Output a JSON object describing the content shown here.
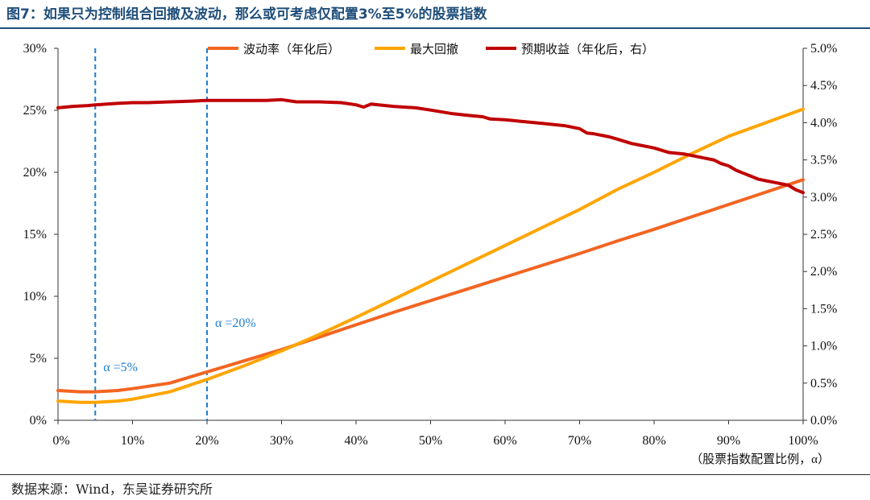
{
  "figure": {
    "title": "图7：如果只为控制组合回撤及波动，那么或可考虑仅配置3%至5%的股票指数",
    "source": "数据来源：Wind，东吴证券研究所"
  },
  "colors": {
    "volatility": "#f26522",
    "max_drawdown": "#ffa500",
    "expected_return": "#c00000",
    "markers": "#1f7fd1",
    "title": "#1f4e79"
  },
  "chart_data": {
    "type": "line",
    "title": "",
    "xlabel": "（股票指数配置比例，α）",
    "ylabel_left": "",
    "ylabel_right": "",
    "x_range": [
      0,
      100
    ],
    "x_ticks": [
      0,
      10,
      20,
      30,
      40,
      50,
      60,
      70,
      80,
      90,
      100
    ],
    "x_tick_labels": [
      "0%",
      "10%",
      "20%",
      "30%",
      "40%",
      "50%",
      "60%",
      "70%",
      "80%",
      "90%",
      "100%"
    ],
    "y_left_range": [
      0,
      30
    ],
    "y_left_ticks": [
      0,
      5,
      10,
      15,
      20,
      25,
      30
    ],
    "y_left_tick_labels": [
      "0%",
      "5%",
      "10%",
      "15%",
      "20%",
      "25%",
      "30%"
    ],
    "y_right_range": [
      0,
      5
    ],
    "y_right_ticks": [
      0,
      0.5,
      1,
      1.5,
      2,
      2.5,
      3,
      3.5,
      4,
      4.5,
      5
    ],
    "y_right_tick_labels": [
      "0.0%",
      "0.5%",
      "1.0%",
      "1.5%",
      "2.0%",
      "2.5%",
      "3.0%",
      "3.5%",
      "4.0%",
      "4.5%",
      "5.0%"
    ],
    "grid": false,
    "legend_position": "top",
    "series": [
      {
        "name": "波动率（年化后）",
        "axis": "left",
        "x": [
          0,
          3,
          5,
          8,
          10,
          15,
          20,
          25,
          30,
          35,
          40,
          45,
          50,
          55,
          60,
          65,
          70,
          75,
          80,
          85,
          90,
          95,
          100
        ],
        "values": [
          2.4,
          2.3,
          2.3,
          2.4,
          2.55,
          3.0,
          3.9,
          4.8,
          5.7,
          6.7,
          7.7,
          8.7,
          9.65,
          10.6,
          11.55,
          12.5,
          13.45,
          14.45,
          15.4,
          16.4,
          17.4,
          18.4,
          19.4
        ]
      },
      {
        "name": "最大回撤",
        "axis": "left",
        "x": [
          0,
          3,
          5,
          8,
          10,
          15,
          20,
          25,
          30,
          35,
          40,
          45,
          50,
          55,
          60,
          65,
          70,
          75,
          80,
          85,
          90,
          95,
          100
        ],
        "values": [
          1.55,
          1.45,
          1.45,
          1.55,
          1.7,
          2.3,
          3.3,
          4.4,
          5.6,
          6.9,
          8.3,
          9.75,
          11.2,
          12.65,
          14.1,
          15.55,
          17.0,
          18.6,
          20.0,
          21.5,
          22.9,
          24.0,
          25.1
        ]
      },
      {
        "name": "预期收益（年化后，右）",
        "axis": "right",
        "x": [
          0,
          2,
          4,
          5,
          8,
          10,
          12,
          15,
          18,
          20,
          22,
          25,
          28,
          30,
          32,
          35,
          38,
          40,
          41,
          42,
          45,
          48,
          50,
          53,
          55,
          57,
          58,
          60,
          62,
          65,
          68,
          70,
          71,
          72,
          74,
          75,
          77,
          78,
          80,
          82,
          84,
          86,
          87,
          88,
          89,
          90,
          91,
          92,
          93,
          94,
          95,
          96,
          97,
          98,
          99,
          100
        ],
        "values": [
          4.2,
          4.22,
          4.23,
          4.24,
          4.26,
          4.27,
          4.27,
          4.28,
          4.29,
          4.3,
          4.3,
          4.3,
          4.3,
          4.31,
          4.28,
          4.28,
          4.27,
          4.24,
          4.21,
          4.25,
          4.22,
          4.2,
          4.17,
          4.12,
          4.1,
          4.08,
          4.05,
          4.04,
          4.02,
          3.99,
          3.96,
          3.92,
          3.86,
          3.85,
          3.81,
          3.78,
          3.72,
          3.7,
          3.66,
          3.6,
          3.58,
          3.54,
          3.52,
          3.5,
          3.45,
          3.42,
          3.36,
          3.32,
          3.28,
          3.24,
          3.22,
          3.2,
          3.18,
          3.16,
          3.1,
          3.06
        ]
      }
    ],
    "annotations": [
      {
        "x": 5,
        "label": "α =5%"
      },
      {
        "x": 20,
        "label": "α =20%"
      }
    ]
  }
}
